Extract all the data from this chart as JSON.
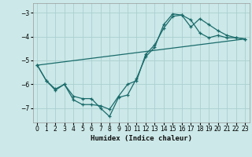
{
  "xlabel": "Humidex (Indice chaleur)",
  "background_color": "#cce8e8",
  "grid_color": "#aacfcf",
  "line_color": "#1a6b6b",
  "xlim": [
    -0.5,
    23.5
  ],
  "ylim": [
    -7.6,
    -2.6
  ],
  "yticks": [
    -7,
    -6,
    -5,
    -4,
    -3
  ],
  "xticks": [
    0,
    1,
    2,
    3,
    4,
    5,
    6,
    7,
    8,
    9,
    10,
    11,
    12,
    13,
    14,
    15,
    16,
    17,
    18,
    19,
    20,
    21,
    22,
    23
  ],
  "line1_x": [
    0,
    1,
    2,
    3,
    4,
    5,
    6,
    7,
    8,
    9,
    10,
    11,
    12,
    13,
    14,
    15,
    16,
    17,
    18,
    19,
    20,
    21,
    22,
    23
  ],
  "line1_y": [
    -5.2,
    -5.85,
    -6.2,
    -6.0,
    -6.65,
    -6.85,
    -6.85,
    -6.9,
    -7.05,
    -6.5,
    -6.0,
    -5.85,
    -4.75,
    -4.35,
    -3.65,
    -3.15,
    -3.1,
    -3.3,
    -3.85,
    -4.05,
    -3.95,
    -4.05,
    -4.05,
    -4.1
  ],
  "line2_x": [
    0,
    1,
    2,
    3,
    4,
    5,
    6,
    7,
    8,
    9,
    10,
    11,
    12,
    13,
    14,
    15,
    16,
    17,
    18,
    19,
    20,
    21,
    22,
    23
  ],
  "line2_y": [
    -5.2,
    -5.85,
    -6.25,
    -6.0,
    -6.5,
    -6.6,
    -6.6,
    -7.0,
    -7.35,
    -6.55,
    -6.45,
    -5.75,
    -4.85,
    -4.45,
    -3.5,
    -3.05,
    -3.1,
    -3.6,
    -3.25,
    -3.5,
    -3.75,
    -3.95,
    -4.05,
    -4.1
  ],
  "line3_x": [
    0,
    23
  ],
  "line3_y": [
    -5.2,
    -4.1
  ]
}
